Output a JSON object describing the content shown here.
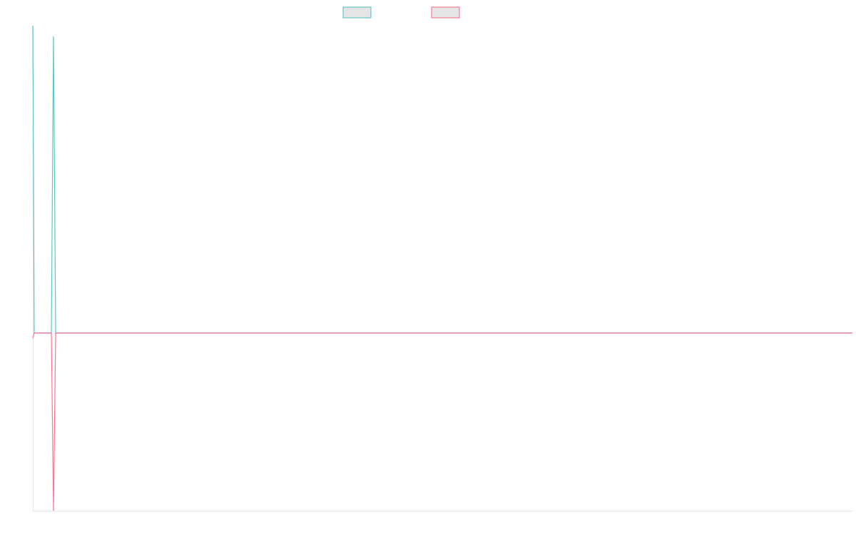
{
  "chart_data": {
    "type": "line",
    "title": "",
    "xlabel": "",
    "ylabel": "",
    "xlim": [
      0,
      575
    ],
    "ylim": [
      -1,
      1.73
    ],
    "grid": false,
    "legend_position": "top",
    "series": [
      {
        "color": "#4bc0c0",
        "points": [
          [
            0,
            1.73
          ],
          [
            1,
            0
          ],
          [
            13,
            0
          ],
          [
            14.5,
            1.67
          ],
          [
            16,
            0
          ],
          [
            575,
            0
          ]
        ]
      },
      {
        "color": "#ff6384",
        "points": [
          [
            0,
            -0.03
          ],
          [
            1,
            0
          ],
          [
            13,
            0
          ],
          [
            14.5,
            -1
          ],
          [
            16,
            0
          ],
          [
            575,
            0
          ]
        ]
      }
    ]
  }
}
